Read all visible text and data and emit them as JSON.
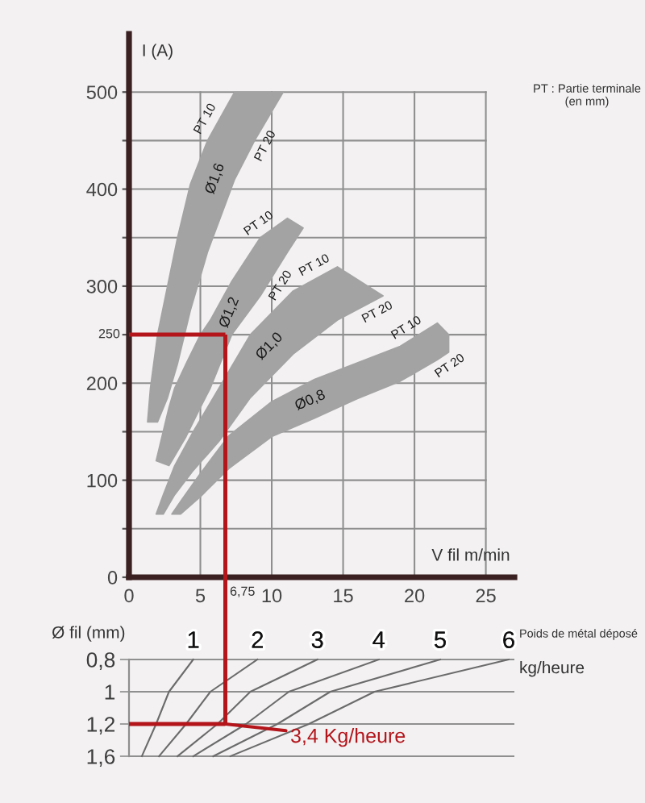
{
  "chart_data": [
    {
      "type": "line",
      "xlabel": "V fil m/min",
      "ylabel": "I (A)",
      "xlim": [
        0,
        27
      ],
      "ylim": [
        0,
        560
      ],
      "xticks": [
        0,
        5,
        10,
        15,
        20,
        25
      ],
      "yticks": [
        0,
        {
          "value": 50,
          "label": null
        },
        100,
        {
          "value": 150,
          "label": null
        },
        200,
        {
          "value": 250,
          "label": null
        },
        300,
        {
          "value": 350,
          "label": null
        },
        400,
        {
          "value": 450,
          "label": null
        },
        500
      ],
      "grid": true,
      "series": [
        {
          "name": "Ø1,6",
          "x": [
            1.3,
            1.5,
            2.0,
            2.7,
            3.4,
            4.3,
            5.5,
            7.4,
            8.8,
            10.8
          ],
          "values": [
            null,
            null,
            null,
            null,
            null,
            null,
            null,
            null,
            null,
            null
          ],
          "upper": [
            160,
            195,
            250,
            300,
            350,
            405,
            450,
            500,
            500,
            500
          ],
          "lower": [
            160,
            160,
            160,
            185,
            220,
            275,
            335,
            410,
            450,
            500
          ]
        },
        {
          "name": "Ø1,2",
          "x": [
            1.9,
            2.8,
            3.2,
            4.0,
            5.0,
            5.7,
            7.2,
            9.2,
            11.1,
            12.2
          ],
          "values": [
            null,
            null,
            null,
            null,
            null,
            null,
            null,
            null,
            null,
            null
          ],
          "upper": [
            120,
            175,
            195,
            220,
            250,
            265,
            305,
            350,
            370,
            360
          ],
          "lower": [
            120,
            115,
            125,
            145,
            175,
            195,
            250,
            290,
            335,
            360
          ]
        },
        {
          "name": "Ø1,0",
          "x": [
            1.9,
            2.4,
            3.2,
            4.5,
            6.3,
            8.5,
            11.5,
            14.6,
            17.8
          ],
          "values": [
            null,
            null,
            null,
            null,
            null,
            null,
            null,
            null,
            null
          ],
          "upper": [
            65,
            85,
            115,
            150,
            195,
            250,
            295,
            320,
            290
          ],
          "lower": [
            65,
            65,
            85,
            110,
            140,
            185,
            230,
            265,
            290
          ]
        },
        {
          "name": "Ø0,8",
          "x": [
            3.0,
            3.6,
            5.0,
            7.0,
            10.0,
            13.0,
            16.0,
            19.0,
            21.6,
            22.4
          ],
          "values": [
            null,
            null,
            null,
            null,
            null,
            null,
            null,
            null,
            null,
            null
          ],
          "upper": [
            65,
            78,
            107,
            146,
            181,
            204,
            221,
            238,
            262,
            250
          ],
          "lower": [
            65,
            65,
            83,
            112,
            145,
            164,
            184,
            202,
            224,
            232
          ]
        }
      ],
      "ref_lines": [
        {
          "axis": "y",
          "value": 250,
          "label": "250",
          "color": "#b3151b"
        },
        {
          "axis": "x",
          "value": 6.75,
          "label": "6,75",
          "color": "#b3151b"
        }
      ],
      "annotations": [
        "PT : Partie terminale (en mm)",
        {
          "text": "PT 10",
          "x": 6.1,
          "y": 466
        },
        {
          "text": "PT 20",
          "x": 8.8,
          "y": 450
        },
        {
          "text": "PT 10",
          "x": 9.6,
          "y": 354
        },
        {
          "text": "PT 20",
          "x": 9.9,
          "y": 307
        },
        {
          "text": "PT 10",
          "x": 13.4,
          "y": 310
        },
        {
          "text": "PT 20",
          "x": 17.0,
          "y": 284
        },
        {
          "text": "PT 10",
          "x": 19.9,
          "y": 246
        },
        {
          "text": "PT 20",
          "x": 22.0,
          "y": 228
        }
      ]
    },
    {
      "type": "line",
      "orientation": "horizontal",
      "ylabel": "Ø fil (mm)",
      "categories": [
        "0,8",
        "1",
        "1,2",
        "1,6"
      ],
      "xlim": [
        0,
        27
      ],
      "tick_labels": "y",
      "grid": "y",
      "series": [
        {
          "name": "1",
          "color": "#6b6b6b",
          "values": [
            4.5,
            2.8,
            1.9,
            0.9
          ]
        },
        {
          "name": "2",
          "color": "#6b6b6b",
          "values": [
            9.0,
            5.7,
            4.0,
            2.1
          ]
        },
        {
          "name": "3",
          "color": "#6b6b6b",
          "values": [
            13.2,
            8.5,
            6.2,
            3.4
          ]
        },
        {
          "name": "4",
          "color": "#6b6b6b",
          "values": [
            17.5,
            11.2,
            8.2,
            4.5
          ]
        },
        {
          "name": "5",
          "color": "#6b6b6b",
          "values": [
            21.8,
            14.1,
            10.4,
            5.9
          ]
        },
        {
          "name": "6",
          "color": "#6b6b6b",
          "values": [
            26.6,
            17.2,
            12.6,
            7.1
          ]
        }
      ],
      "ref_lines": [
        {
          "axis": "x",
          "value": 6.75,
          "color": "#b3151b"
        },
        {
          "axis": "y",
          "value": "1,2",
          "color": "#b3151b"
        }
      ],
      "annotations": [
        "Poids de métal déposé",
        "kg/heure",
        {
          "text": "3,4 Kg/heure",
          "x": 6.75,
          "y": "1,2"
        }
      ]
    }
  ]
}
